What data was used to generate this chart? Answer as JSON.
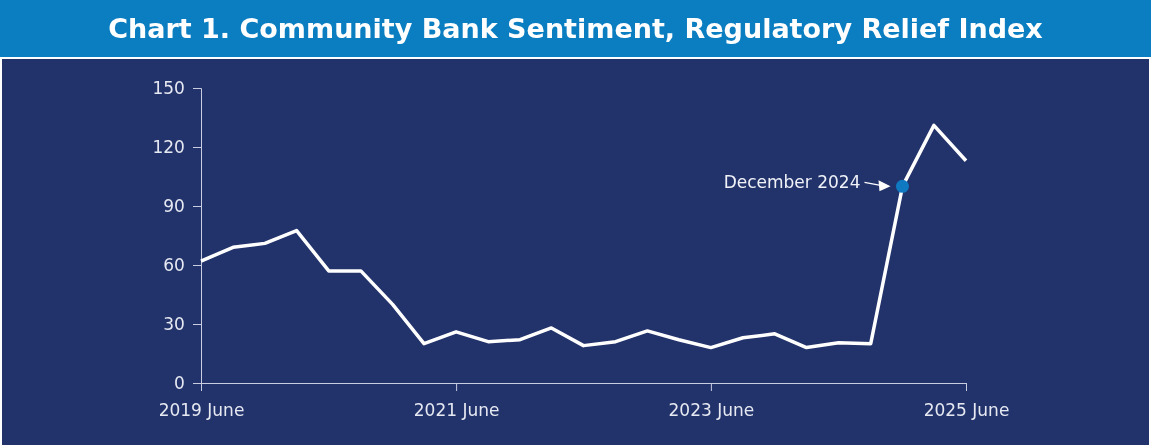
{
  "chart_data": {
    "type": "line",
    "title": "Chart 1. Community Bank Sentiment, Regulatory Relief Index",
    "x": [
      "2019-06",
      "2019-09",
      "2019-12",
      "2020-03",
      "2020-06",
      "2020-09",
      "2020-12",
      "2021-03",
      "2021-06",
      "2021-09",
      "2021-12",
      "2022-03",
      "2022-06",
      "2022-09",
      "2022-12",
      "2023-03",
      "2023-06",
      "2023-09",
      "2023-12",
      "2024-03",
      "2024-06",
      "2024-09",
      "2024-12",
      "2025-03",
      "2025-06"
    ],
    "series": [
      {
        "color": "#ffffff",
        "values": [
          62,
          69,
          71,
          77.5,
          57,
          57,
          40,
          20,
          26,
          21,
          22,
          28,
          19,
          21,
          26.5,
          22,
          18,
          23,
          25,
          18,
          20.5,
          20,
          100,
          131,
          113
        ]
      }
    ],
    "xlim": [
      "2019-06",
      "2025-06"
    ],
    "xticks": [
      {
        "value": "2019-06",
        "label": "2019 June"
      },
      {
        "value": "2021-06",
        "label": "2021 June"
      },
      {
        "value": "2023-06",
        "label": "2023 June"
      },
      {
        "value": "2025-06",
        "label": "2025 June"
      }
    ],
    "ylim": [
      0,
      150
    ],
    "yticks": [
      0,
      30,
      60,
      90,
      120,
      150
    ],
    "grid": false,
    "marker": "none",
    "line_style": "solid",
    "annotations": [
      {
        "text": "December 2024",
        "x": "2024-12",
        "y": 100
      }
    ]
  }
}
